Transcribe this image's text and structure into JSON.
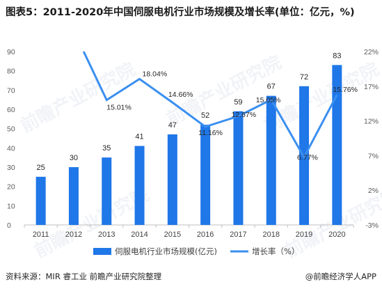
{
  "title": "图表5：2011-2020年中国伺服电机行业市场规模及增长率(单位：亿元，%)",
  "footer": {
    "source": "资料来源：MIR 睿工业 前瞻产业研究院整理",
    "brand": "@前瞻经济学人APP"
  },
  "watermark": "前瞻产业研究院",
  "colors": {
    "bar": "#1f77e8",
    "line": "#3a8ff0",
    "axis": "#bfbfbf"
  },
  "chart_data": {
    "type": "bar",
    "categories": [
      "2011",
      "2012",
      "2013",
      "2014",
      "2015",
      "2016",
      "2017",
      "2018",
      "2019",
      "2020"
    ],
    "series": [
      {
        "name": "伺服电机行业市场规模(亿元)",
        "type": "bar",
        "axis": "left",
        "values": [
          25,
          30,
          35,
          41,
          47,
          52,
          59,
          67,
          72,
          83
        ],
        "labels": [
          "25",
          "30",
          "35",
          "41",
          "47",
          "52",
          "59",
          "67",
          "72",
          "83"
        ]
      },
      {
        "name": "增长率（%）",
        "type": "line",
        "axis": "right",
        "values": [
          null,
          25,
          15.01,
          18.04,
          14.66,
          11.16,
          12.67,
          15.05,
          6.77,
          15.76
        ],
        "labels": [
          "",
          "",
          "15.01%",
          "18.04%",
          "14.66%",
          "11.16%",
          "12.67%",
          "15.05%",
          "6.77%",
          "15.76%"
        ]
      }
    ],
    "left_axis": {
      "min": 0,
      "max": 90,
      "ticks": [
        "0",
        "10",
        "20",
        "30",
        "40",
        "50",
        "60",
        "70",
        "80",
        "90"
      ]
    },
    "right_axis": {
      "min": -3,
      "max": 22,
      "ticks": [
        "-3%",
        "2%",
        "7%",
        "12%",
        "17%",
        "22%"
      ]
    },
    "legend": [
      "伺服电机行业市场规模(亿元)",
      "增长率（%）"
    ],
    "legend_position": "bottom",
    "grid": false
  }
}
